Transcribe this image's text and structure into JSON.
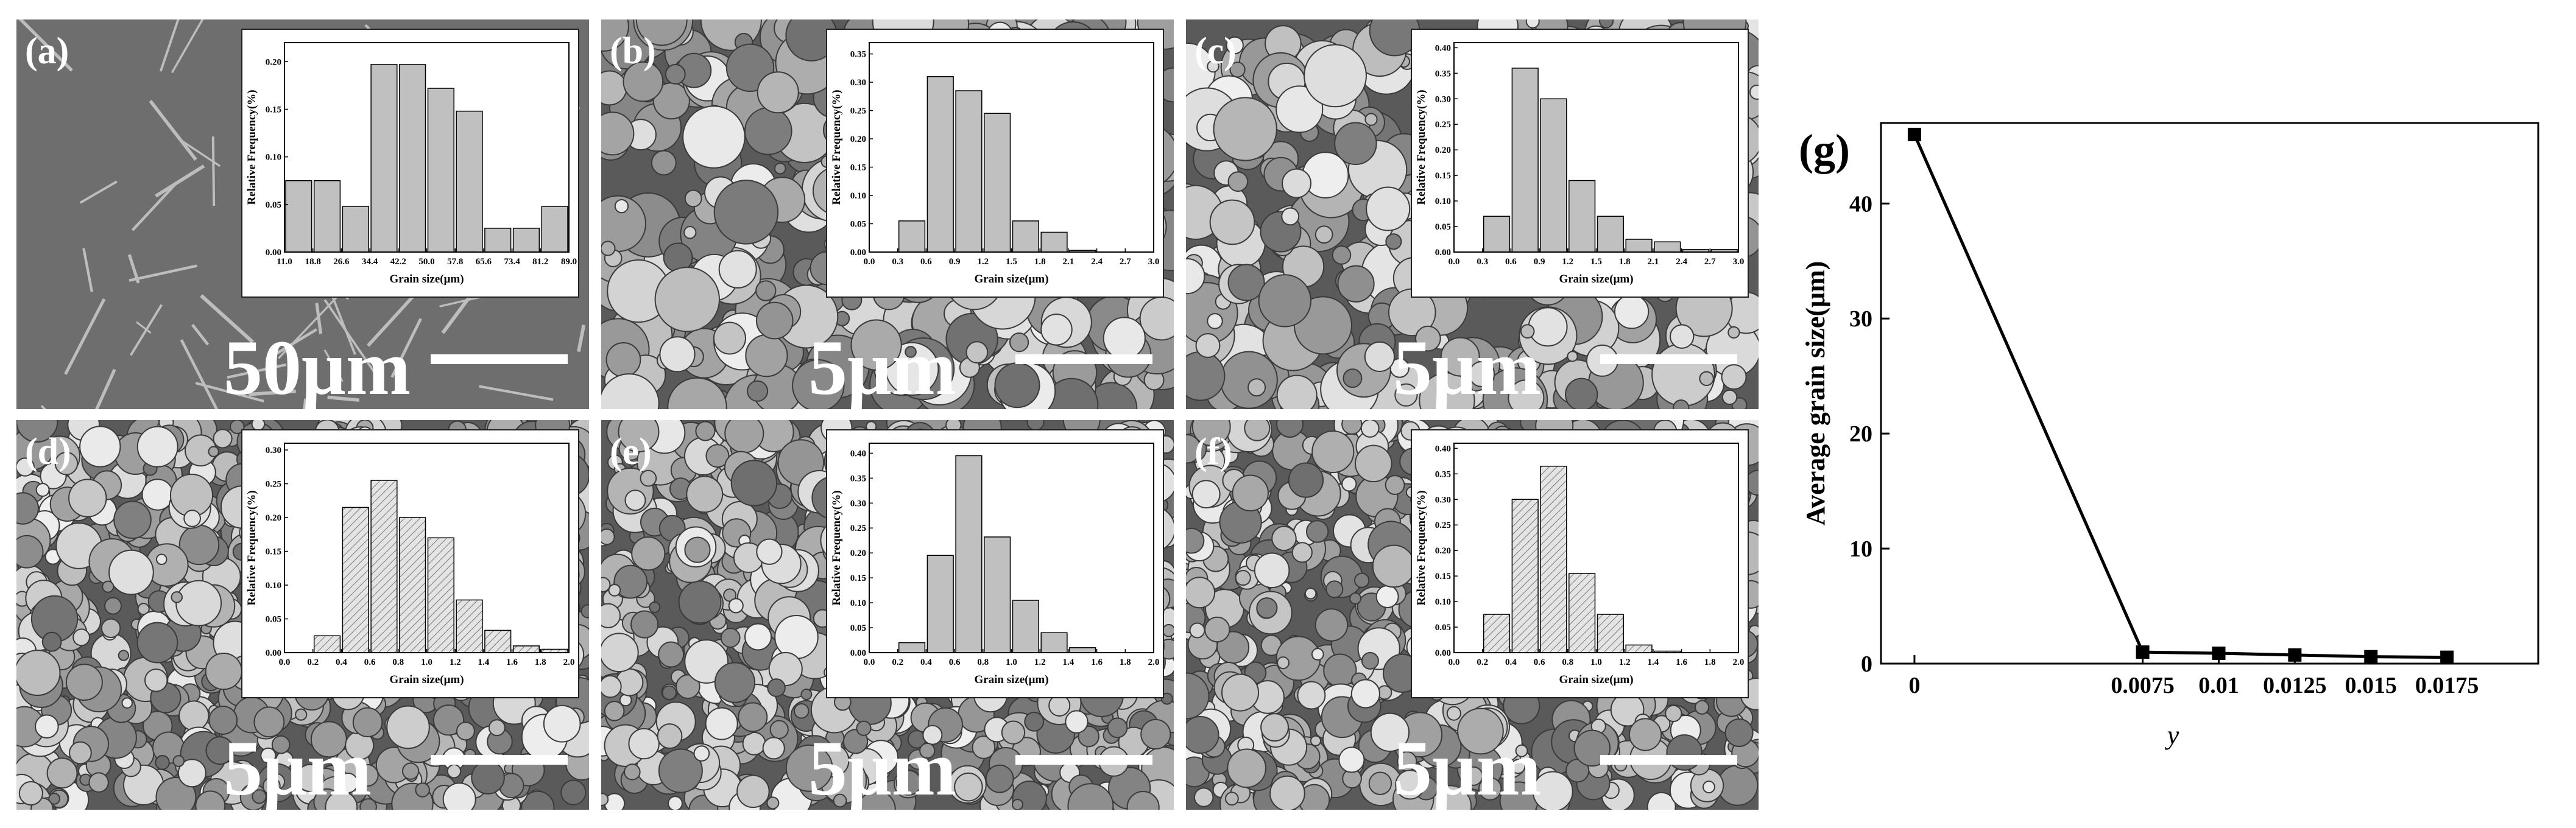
{
  "chart_data": [
    {
      "type": "histogram",
      "panel_label": "(a)",
      "scale_bar": "50μm",
      "hatch": false,
      "color": "#c0c0c0",
      "y_label": "Relative Frequency(%)",
      "x_label": "Grain size(μm)",
      "bins": [
        11.0,
        18.8,
        26.6,
        34.4,
        42.2,
        50.0,
        57.8,
        65.6,
        73.4,
        81.2,
        89.0
      ],
      "values": [
        0.075,
        0.075,
        0.048,
        0.197,
        0.197,
        0.172,
        0.148,
        0.025,
        0.025,
        0.048
      ],
      "xlim": [
        11.0,
        89.0
      ],
      "xticks": [
        {
          "value": 11,
          "label": "11.0"
        },
        18.8,
        26.6,
        34.4,
        42.2,
        {
          "value": 50,
          "label": "50.0"
        },
        57.8,
        65.6,
        73.4,
        81.2,
        {
          "value": 89,
          "label": "89.0"
        }
      ],
      "ylim": [
        0,
        0.22
      ],
      "yticks": [
        {
          "value": 0,
          "label": "0.00"
        },
        0.05,
        {
          "value": 0.1,
          "label": "0.10"
        },
        0.15,
        {
          "value": 0.2,
          "label": "0.20"
        }
      ]
    },
    {
      "type": "histogram",
      "panel_label": "(b)",
      "scale_bar": "5μm",
      "hatch": false,
      "color": "#c0c0c0",
      "y_label": "Relative Frequency(%)",
      "x_label": "Grain size(μm)",
      "bins": [
        0.3,
        0.6,
        0.9,
        1.2,
        1.5,
        1.8,
        2.1,
        2.4
      ],
      "values": [
        0.055,
        0.31,
        0.285,
        0.245,
        0.055,
        0.035,
        0.003
      ],
      "xlim": [
        0,
        3
      ],
      "xticks": [
        {
          "value": 0,
          "label": "0.0"
        },
        0.3,
        0.6,
        0.9,
        1.2,
        1.5,
        1.8,
        2.1,
        2.4,
        2.7,
        {
          "value": 3,
          "label": "3.0"
        }
      ],
      "ylim": [
        0,
        0.37
      ],
      "yticks": [
        {
          "value": 0,
          "label": "0.00"
        },
        0.05,
        {
          "value": 0.1,
          "label": "0.10"
        },
        0.15,
        {
          "value": 0.2,
          "label": "0.20"
        },
        0.25,
        {
          "value": 0.3,
          "label": "0.30"
        },
        0.35
      ]
    },
    {
      "type": "histogram",
      "panel_label": "(c)",
      "scale_bar": "5μm",
      "hatch": false,
      "color": "#c0c0c0",
      "y_label": "Relative Frequency(%)",
      "x_label": "Grain size(μm)",
      "bins": [
        0.3,
        0.6,
        0.9,
        1.2,
        1.5,
        1.8,
        2.1,
        2.4,
        2.7,
        3.0
      ],
      "values": [
        0.07,
        0.36,
        0.3,
        0.14,
        0.07,
        0.025,
        0.02,
        0.005,
        0.005
      ],
      "xlim": [
        0,
        3
      ],
      "xticks": [
        {
          "value": 0,
          "label": "0.0"
        },
        0.3,
        0.6,
        0.9,
        1.2,
        1.5,
        1.8,
        2.1,
        2.4,
        2.7,
        {
          "value": 3,
          "label": "3.0"
        }
      ],
      "ylim": [
        0,
        0.41
      ],
      "yticks": [
        {
          "value": 0,
          "label": "0.00"
        },
        0.05,
        {
          "value": 0.1,
          "label": "0.10"
        },
        0.15,
        {
          "value": 0.2,
          "label": "0.20"
        },
        0.25,
        {
          "value": 0.3,
          "label": "0.30"
        },
        0.35,
        {
          "value": 0.4,
          "label": "0.40"
        }
      ]
    },
    {
      "type": "histogram",
      "panel_label": "(d)",
      "scale_bar": "5μm",
      "hatch": true,
      "color": "#c0c0c0",
      "y_label": "Relative Frequency(%)",
      "x_label": "Grain size(μm)",
      "bins": [
        0.2,
        0.4,
        0.6,
        0.8,
        1.0,
        1.2,
        1.4,
        1.6,
        1.8,
        2.0
      ],
      "values": [
        0.025,
        0.215,
        0.255,
        0.2,
        0.17,
        0.078,
        0.033,
        0.01,
        0.005
      ],
      "xlim": [
        0,
        2
      ],
      "xticks": [
        {
          "value": 0,
          "label": "0.0"
        },
        0.2,
        0.4,
        0.6,
        0.8,
        {
          "value": 1,
          "label": "1.0"
        },
        1.2,
        1.4,
        1.6,
        1.8,
        {
          "value": 2,
          "label": "2.0"
        }
      ],
      "ylim": [
        0,
        0.31
      ],
      "yticks": [
        {
          "value": 0,
          "label": "0.00"
        },
        0.05,
        {
          "value": 0.1,
          "label": "0.10"
        },
        0.15,
        {
          "value": 0.2,
          "label": "0.20"
        },
        0.25,
        {
          "value": 0.3,
          "label": "0.30"
        }
      ]
    },
    {
      "type": "histogram",
      "panel_label": "(e)",
      "scale_bar": "5μm",
      "hatch": false,
      "color": "#c0c0c0",
      "y_label": "Relative Frequency(%)",
      "x_label": "Grain size(μm)",
      "bins": [
        0.2,
        0.4,
        0.6,
        0.8,
        1.0,
        1.2,
        1.4,
        1.6
      ],
      "values": [
        0.02,
        0.195,
        0.395,
        0.232,
        0.105,
        0.04,
        0.01
      ],
      "xlim": [
        0,
        2
      ],
      "xticks": [
        {
          "value": 0,
          "label": "0.0"
        },
        0.2,
        0.4,
        0.6,
        0.8,
        {
          "value": 1,
          "label": "1.0"
        },
        1.2,
        1.4,
        1.6,
        1.8,
        {
          "value": 2,
          "label": "2.0"
        }
      ],
      "ylim": [
        0,
        0.42
      ],
      "yticks": [
        {
          "value": 0,
          "label": "0.00"
        },
        0.05,
        {
          "value": 0.1,
          "label": "0.10"
        },
        0.15,
        {
          "value": 0.2,
          "label": "0.20"
        },
        0.25,
        {
          "value": 0.3,
          "label": "0.30"
        },
        0.35,
        {
          "value": 0.4,
          "label": "0.40"
        }
      ]
    },
    {
      "type": "histogram",
      "panel_label": "(f)",
      "scale_bar": "5μm",
      "hatch": true,
      "color": "#c0c0c0",
      "y_label": "Relative Frequency(%)",
      "x_label": "Grain size(μm)",
      "bins": [
        0.2,
        0.4,
        0.6,
        0.8,
        1.0,
        1.2,
        1.4,
        1.6
      ],
      "values": [
        0.075,
        0.3,
        0.365,
        0.155,
        0.075,
        0.015,
        0.003
      ],
      "xlim": [
        0,
        2
      ],
      "xticks": [
        {
          "value": 0,
          "label": "0.0"
        },
        0.2,
        0.4,
        0.6,
        0.8,
        {
          "value": 1,
          "label": "1.0"
        },
        1.2,
        1.4,
        1.6,
        1.8,
        {
          "value": 2,
          "label": "2.0"
        }
      ],
      "ylim": [
        0,
        0.41
      ],
      "yticks": [
        {
          "value": 0,
          "label": "0.00"
        },
        0.05,
        {
          "value": 0.1,
          "label": "0.10"
        },
        0.15,
        {
          "value": 0.2,
          "label": "0.20"
        },
        0.25,
        {
          "value": 0.3,
          "label": "0.30"
        },
        0.35,
        {
          "value": 0.4,
          "label": "0.40"
        }
      ]
    },
    {
      "type": "line",
      "panel_label": "(g)",
      "x_label": "y",
      "y_label": "Average grain size(μm)",
      "color": "#000000",
      "x": [
        0,
        0.0075,
        0.01,
        0.0125,
        0.015,
        0.0175
      ],
      "values": [
        46,
        1.0,
        0.9,
        0.75,
        0.6,
        0.55
      ],
      "xlim": [
        -0.0011,
        0.0205
      ],
      "xticks": [
        0,
        0.0075,
        0.01,
        0.0125,
        0.015,
        0.0175
      ],
      "ylim": [
        0,
        47
      ],
      "yticks": [
        0,
        10,
        20,
        30,
        40
      ]
    }
  ]
}
